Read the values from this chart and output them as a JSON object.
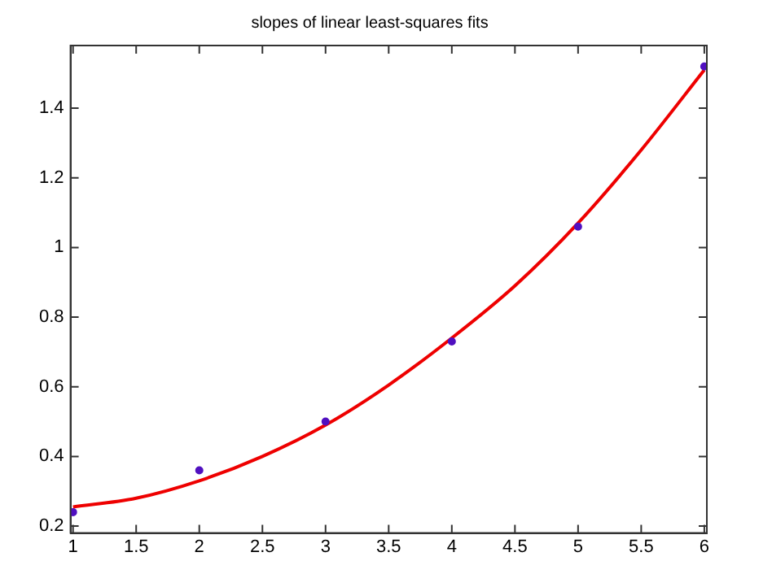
{
  "chart_data": {
    "type": "scatter",
    "title": "slopes of linear least-squares fits",
    "xlim": [
      0.98,
      6.02
    ],
    "xticks": [
      1,
      1.5,
      2,
      2.5,
      3,
      3.5,
      4,
      4.5,
      5,
      5.5,
      6
    ],
    "ylim": [
      0.18,
      1.58
    ],
    "yticks": [
      0.2,
      0.4,
      0.6,
      0.8,
      1,
      1.2,
      1.4
    ],
    "grid": false,
    "legend": false,
    "series": [
      {
        "type": "scatter",
        "color": "#5010c0",
        "marker": "circle",
        "x": [
          1,
          2,
          3,
          4,
          5,
          6
        ],
        "values": [
          0.24,
          0.36,
          0.5,
          0.73,
          1.06,
          1.52
        ]
      },
      {
        "type": "line",
        "color": "#ee0000",
        "marker": "none",
        "line_style": "solid",
        "x": [
          1,
          1.5,
          2,
          2.5,
          3,
          3.5,
          4,
          4.5,
          5,
          5.5,
          6
        ],
        "values": [
          0.255,
          0.28,
          0.33,
          0.4,
          0.49,
          0.605,
          0.74,
          0.89,
          1.07,
          1.28,
          1.51
        ]
      }
    ]
  }
}
